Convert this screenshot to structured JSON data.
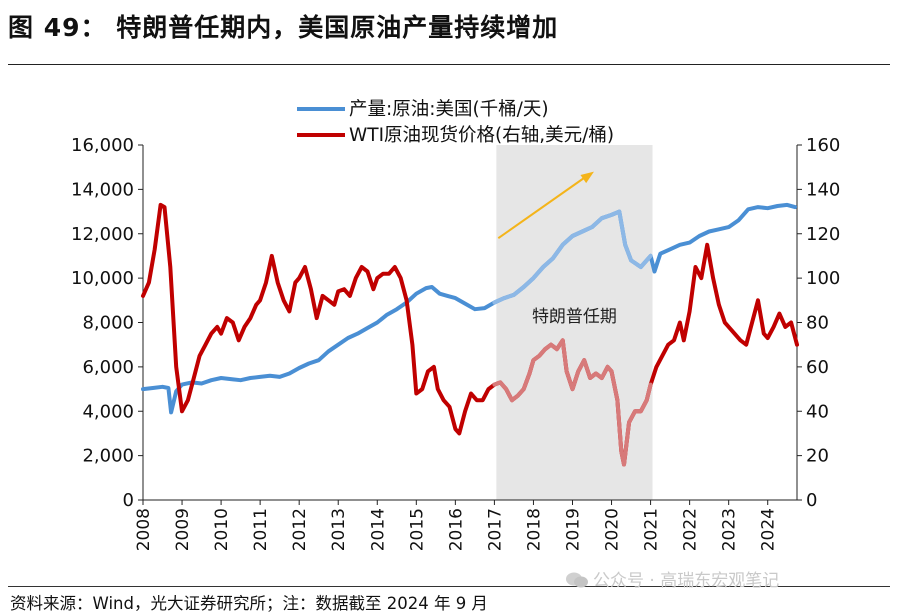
{
  "figure": {
    "title": "图 49：  特朗普任期内，美国原油产量持续增加",
    "source": "资料来源：Wind，光大证券研究所；注：数据截至 2024 年 9 月",
    "watermark": "公众号 · 高瑞东宏观笔记"
  },
  "colors": {
    "production": "#4A8FD4",
    "production_highlight": "#8DB8E6",
    "wti": "#C00000",
    "wti_highlight": "#D77A7A",
    "shade": "#E6E6E6",
    "arrow": "#F4B41A"
  },
  "chart_data": {
    "type": "line",
    "title": "图 49：特朗普任期内，美国原油产量持续增加",
    "x_range": [
      2008.0,
      2024.75
    ],
    "x_ticks": [
      "2008",
      "2009",
      "2010",
      "2011",
      "2012",
      "2013",
      "2014",
      "2015",
      "2016",
      "2017",
      "2018",
      "2019",
      "2020",
      "2021",
      "2022",
      "2023",
      "2024"
    ],
    "y_left": {
      "range": [
        0,
        16000
      ],
      "ticks": [
        "0",
        "2,000",
        "4,000",
        "6,000",
        "8,000",
        "10,000",
        "12,000",
        "14,000",
        "16,000"
      ]
    },
    "y_right": {
      "range": [
        0,
        160
      ],
      "ticks": [
        "0",
        "20",
        "40",
        "60",
        "80",
        "100",
        "120",
        "140",
        "160"
      ]
    },
    "legend": {
      "position": "top-center",
      "entries": [
        "产量:原油:美国(千桶/天)",
        "WTI原油现货价格(右轴,美元/桶)"
      ]
    },
    "shaded_period": {
      "label": "特朗普任期",
      "start": 2017.05,
      "end": 2021.05
    },
    "arrow_annotation": {
      "from": [
        2017.1,
        11800
      ],
      "to": [
        2019.55,
        14800
      ]
    },
    "series": [
      {
        "name": "产量:原油:美国(千桶/天)",
        "axis": "left",
        "points": [
          [
            2008.0,
            5000
          ],
          [
            2008.25,
            5050
          ],
          [
            2008.5,
            5100
          ],
          [
            2008.65,
            5050
          ],
          [
            2008.72,
            3950
          ],
          [
            2008.85,
            4900
          ],
          [
            2009.0,
            5200
          ],
          [
            2009.25,
            5300
          ],
          [
            2009.5,
            5250
          ],
          [
            2009.75,
            5400
          ],
          [
            2010.0,
            5500
          ],
          [
            2010.25,
            5450
          ],
          [
            2010.5,
            5400
          ],
          [
            2010.75,
            5500
          ],
          [
            2011.0,
            5550
          ],
          [
            2011.25,
            5600
          ],
          [
            2011.5,
            5550
          ],
          [
            2011.75,
            5700
          ],
          [
            2012.0,
            5950
          ],
          [
            2012.25,
            6150
          ],
          [
            2012.5,
            6300
          ],
          [
            2012.75,
            6700
          ],
          [
            2013.0,
            7000
          ],
          [
            2013.25,
            7300
          ],
          [
            2013.5,
            7500
          ],
          [
            2013.75,
            7750
          ],
          [
            2014.0,
            8000
          ],
          [
            2014.25,
            8350
          ],
          [
            2014.5,
            8600
          ],
          [
            2014.75,
            8900
          ],
          [
            2015.0,
            9300
          ],
          [
            2015.25,
            9550
          ],
          [
            2015.4,
            9600
          ],
          [
            2015.6,
            9300
          ],
          [
            2015.8,
            9200
          ],
          [
            2016.0,
            9100
          ],
          [
            2016.25,
            8850
          ],
          [
            2016.5,
            8600
          ],
          [
            2016.75,
            8650
          ],
          [
            2017.0,
            8900
          ],
          [
            2017.25,
            9100
          ],
          [
            2017.5,
            9250
          ],
          [
            2017.75,
            9600
          ],
          [
            2018.0,
            10000
          ],
          [
            2018.25,
            10500
          ],
          [
            2018.5,
            10900
          ],
          [
            2018.75,
            11500
          ],
          [
            2019.0,
            11900
          ],
          [
            2019.25,
            12100
          ],
          [
            2019.5,
            12300
          ],
          [
            2019.75,
            12700
          ],
          [
            2020.0,
            12850
          ],
          [
            2020.2,
            13000
          ],
          [
            2020.35,
            11500
          ],
          [
            2020.5,
            10800
          ],
          [
            2020.75,
            10500
          ],
          [
            2021.0,
            11000
          ],
          [
            2021.1,
            10300
          ],
          [
            2021.25,
            11100
          ],
          [
            2021.5,
            11300
          ],
          [
            2021.75,
            11500
          ],
          [
            2022.0,
            11600
          ],
          [
            2022.25,
            11900
          ],
          [
            2022.5,
            12100
          ],
          [
            2022.75,
            12200
          ],
          [
            2023.0,
            12300
          ],
          [
            2023.25,
            12600
          ],
          [
            2023.5,
            13100
          ],
          [
            2023.75,
            13200
          ],
          [
            2024.0,
            13150
          ],
          [
            2024.25,
            13250
          ],
          [
            2024.5,
            13300
          ],
          [
            2024.7,
            13200
          ]
        ]
      },
      {
        "name": "WTI原油现货价格(右轴,美元/桶)",
        "axis": "right",
        "points": [
          [
            2008.0,
            92
          ],
          [
            2008.15,
            98
          ],
          [
            2008.3,
            113
          ],
          [
            2008.45,
            133
          ],
          [
            2008.55,
            132
          ],
          [
            2008.7,
            105
          ],
          [
            2008.85,
            60
          ],
          [
            2009.0,
            40
          ],
          [
            2009.15,
            45
          ],
          [
            2009.3,
            55
          ],
          [
            2009.45,
            65
          ],
          [
            2009.6,
            70
          ],
          [
            2009.75,
            75
          ],
          [
            2009.9,
            78
          ],
          [
            2010.0,
            75
          ],
          [
            2010.15,
            82
          ],
          [
            2010.3,
            80
          ],
          [
            2010.45,
            72
          ],
          [
            2010.6,
            78
          ],
          [
            2010.75,
            82
          ],
          [
            2010.9,
            88
          ],
          [
            2011.0,
            90
          ],
          [
            2011.15,
            98
          ],
          [
            2011.3,
            110
          ],
          [
            2011.45,
            98
          ],
          [
            2011.6,
            90
          ],
          [
            2011.75,
            85
          ],
          [
            2011.9,
            98
          ],
          [
            2012.0,
            100
          ],
          [
            2012.15,
            105
          ],
          [
            2012.3,
            95
          ],
          [
            2012.45,
            82
          ],
          [
            2012.6,
            92
          ],
          [
            2012.75,
            90
          ],
          [
            2012.9,
            88
          ],
          [
            2013.0,
            94
          ],
          [
            2013.15,
            95
          ],
          [
            2013.3,
            92
          ],
          [
            2013.45,
            100
          ],
          [
            2013.6,
            105
          ],
          [
            2013.75,
            103
          ],
          [
            2013.9,
            95
          ],
          [
            2014.0,
            100
          ],
          [
            2014.15,
            102
          ],
          [
            2014.3,
            102
          ],
          [
            2014.45,
            105
          ],
          [
            2014.6,
            100
          ],
          [
            2014.75,
            90
          ],
          [
            2014.9,
            70
          ],
          [
            2015.0,
            48
          ],
          [
            2015.15,
            50
          ],
          [
            2015.3,
            58
          ],
          [
            2015.45,
            60
          ],
          [
            2015.55,
            50
          ],
          [
            2015.7,
            45
          ],
          [
            2015.85,
            42
          ],
          [
            2016.0,
            32
          ],
          [
            2016.1,
            30
          ],
          [
            2016.25,
            40
          ],
          [
            2016.4,
            48
          ],
          [
            2016.55,
            45
          ],
          [
            2016.7,
            45
          ],
          [
            2016.85,
            50
          ],
          [
            2017.0,
            52
          ],
          [
            2017.15,
            53
          ],
          [
            2017.3,
            50
          ],
          [
            2017.45,
            45
          ],
          [
            2017.6,
            47
          ],
          [
            2017.75,
            50
          ],
          [
            2017.9,
            57
          ],
          [
            2018.0,
            63
          ],
          [
            2018.15,
            65
          ],
          [
            2018.3,
            68
          ],
          [
            2018.45,
            70
          ],
          [
            2018.6,
            68
          ],
          [
            2018.75,
            72
          ],
          [
            2018.85,
            58
          ],
          [
            2019.0,
            50
          ],
          [
            2019.15,
            58
          ],
          [
            2019.3,
            63
          ],
          [
            2019.45,
            55
          ],
          [
            2019.6,
            57
          ],
          [
            2019.75,
            55
          ],
          [
            2019.9,
            60
          ],
          [
            2020.0,
            58
          ],
          [
            2020.15,
            45
          ],
          [
            2020.25,
            22
          ],
          [
            2020.32,
            16
          ],
          [
            2020.45,
            35
          ],
          [
            2020.6,
            40
          ],
          [
            2020.75,
            40
          ],
          [
            2020.9,
            45
          ],
          [
            2021.0,
            52
          ],
          [
            2021.15,
            60
          ],
          [
            2021.3,
            65
          ],
          [
            2021.45,
            70
          ],
          [
            2021.6,
            72
          ],
          [
            2021.75,
            80
          ],
          [
            2021.85,
            72
          ],
          [
            2022.0,
            85
          ],
          [
            2022.15,
            105
          ],
          [
            2022.3,
            100
          ],
          [
            2022.45,
            115
          ],
          [
            2022.6,
            100
          ],
          [
            2022.75,
            88
          ],
          [
            2022.9,
            80
          ],
          [
            2023.0,
            78
          ],
          [
            2023.15,
            75
          ],
          [
            2023.3,
            72
          ],
          [
            2023.45,
            70
          ],
          [
            2023.6,
            80
          ],
          [
            2023.75,
            90
          ],
          [
            2023.9,
            75
          ],
          [
            2024.0,
            73
          ],
          [
            2024.15,
            78
          ],
          [
            2024.3,
            84
          ],
          [
            2024.45,
            78
          ],
          [
            2024.6,
            80
          ],
          [
            2024.75,
            70
          ]
        ]
      }
    ]
  }
}
